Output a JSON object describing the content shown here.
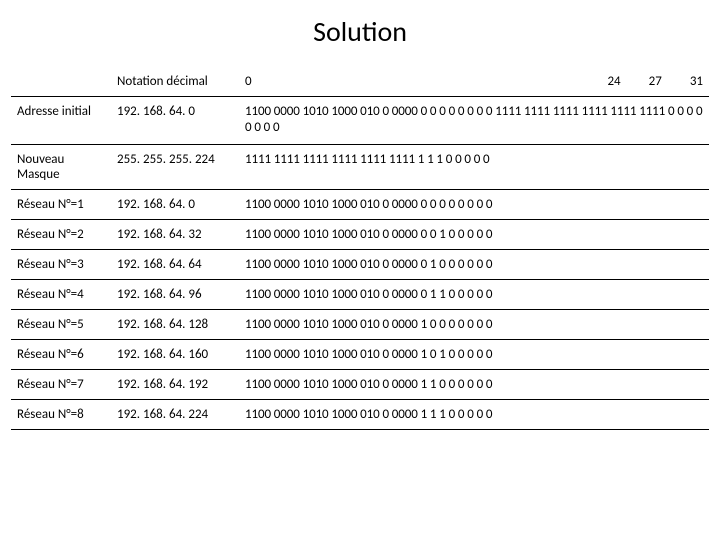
{
  "title": "Solution",
  "header": {
    "label": "",
    "decimal": "Notation décimal",
    "bin_left": "0",
    "bin_m1": "24",
    "bin_m2": "27",
    "bin_right": "31"
  },
  "rows": [
    {
      "label": "Adresse initial",
      "decimal": "192. 168. 64. 0",
      "binary": "1100 0000 1010 1000 010 0 0000 0 0 0  0  0 0 0 0 1111 1111  1111 1111 1111 1111  0 0 0  0  0 0 0 0",
      "tall": true
    },
    {
      "label": "Nouveau Masque",
      "decimal": "255. 255. 255. 224",
      "binary": "1111 1111 1111 1111 1111 1111  1 1 1  0  0 0 0 0",
      "tall": true
    },
    {
      "label": "Réseau N°=1",
      "decimal": "192. 168. 64. 0",
      "binary": "1100 0000 1010 1000 010 0 0000 0 0 0  0  0 0 0 0"
    },
    {
      "label": "Réseau N°=2",
      "decimal": "192. 168. 64. 32",
      "binary": "1100 0000 1010 1000 010 0 0000 0 0 1  0  0 0 0 0"
    },
    {
      "label": "Réseau N°=3",
      "decimal": "192. 168. 64. 64",
      "binary": "1100 0000 1010 1000 010 0 0000 0 1 0  0  0 0 0 0"
    },
    {
      "label": "Réseau N°=4",
      "decimal": "192. 168. 64. 96",
      "binary": "1100 0000 1010 1000 010 0 0000 0 1 1  0  0 0 0 0"
    },
    {
      "label": "Réseau N°=5",
      "decimal": "192. 168. 64. 128",
      "binary": "1100 0000 1010 1000 010 0 0000 1 0 0  0  0 0 0 0"
    },
    {
      "label": "Réseau N°=6",
      "decimal": "192. 168. 64. 160",
      "binary": "1100 0000 1010 1000 010 0 0000 1 0 1  0  0 0 0 0"
    },
    {
      "label": "Réseau N°=7",
      "decimal": "192. 168. 64. 192",
      "binary": "1100 0000 1010 1000 010 0 0000 1 1 0  0  0 0 0 0"
    },
    {
      "label": "Réseau N°=8",
      "decimal": "192. 168. 64. 224",
      "binary": "1100 0000 1010 1000 010 0 0000 1 1 1  0  0 0 0 0"
    }
  ],
  "colors": {
    "bg": "#ffffff",
    "text": "#000000",
    "rule": "#000000"
  },
  "font": {
    "title_size": 28,
    "cell_size": 13
  }
}
